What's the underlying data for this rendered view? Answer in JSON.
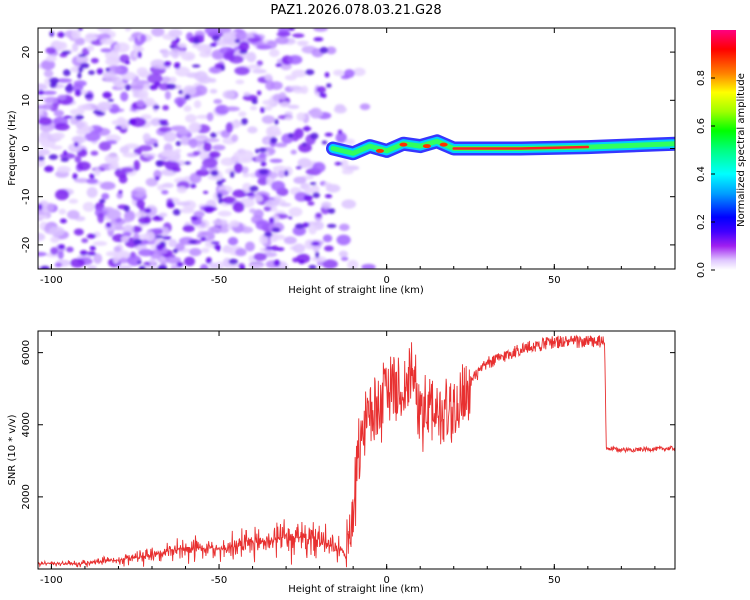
{
  "title": "PAZ1.2026.078.03.21.G28",
  "chart_data": [
    {
      "type": "heatmap",
      "title": "PAZ1.2026.078.03.21.G28",
      "xlabel": "Height of straight line (km)",
      "ylabel": "Frequency (Hz)",
      "xlim": [
        -104,
        86
      ],
      "ylim": [
        -25,
        25
      ],
      "xticks": [
        -100,
        -50,
        0,
        50
      ],
      "yticks": [
        -20,
        -10,
        0,
        10,
        20
      ],
      "colorbar": {
        "label": "Normalized spectral amplitude",
        "range": [
          0,
          1
        ],
        "ticks": [
          "0.0",
          "0.2",
          "0.4",
          "0.6",
          "0.8"
        ],
        "colors": [
          "#ffffff",
          "#d8b4ff",
          "#a020f0",
          "#4000ff",
          "#0000ff",
          "#00a0ff",
          "#00ffff",
          "#00ff80",
          "#00ff00",
          "#a0ff00",
          "#ffff00",
          "#ff8000",
          "#ff0000",
          "#ff0080"
        ]
      },
      "description_points": {
        "noise_region_x": [
          -104,
          -12
        ],
        "signal_ridge": [
          {
            "x": -16,
            "freq": 0.0
          },
          {
            "x": -10,
            "freq": -1.0
          },
          {
            "x": -5,
            "freq": 0.5
          },
          {
            "x": 0,
            "freq": -0.5
          },
          {
            "x": 5,
            "freq": 1.0
          },
          {
            "x": 10,
            "freq": 0.5
          },
          {
            "x": 15,
            "freq": 1.5
          },
          {
            "x": 20,
            "freq": 0.0
          },
          {
            "x": 40,
            "freq": 0.0
          },
          {
            "x": 60,
            "freq": 0.3
          },
          {
            "x": 86,
            "freq": 1.0
          }
        ]
      }
    },
    {
      "type": "line",
      "xlabel": "Height of straight line (km)",
      "ylabel": "SNR (10 * v/v)",
      "xlim": [
        -104,
        86
      ],
      "ylim": [
        0,
        6600
      ],
      "xticks": [
        -100,
        -50,
        0,
        50
      ],
      "yticks": [
        2000,
        4000,
        6000
      ],
      "series": [
        {
          "name": "SNR",
          "color": "#e83030",
          "x": [
            -104,
            -90,
            -80,
            -70,
            -60,
            -50,
            -40,
            -30,
            -20,
            -12,
            -10,
            -8,
            -5,
            0,
            5,
            8,
            10,
            15,
            20,
            25,
            30,
            40,
            50,
            60,
            65,
            65.5,
            70,
            80,
            86
          ],
          "values": [
            150,
            150,
            250,
            400,
            600,
            550,
            700,
            900,
            800,
            400,
            1600,
            3800,
            4200,
            5000,
            5000,
            5500,
            4600,
            4300,
            4500,
            5200,
            5700,
            6100,
            6300,
            6300,
            6300,
            3350,
            3300,
            3330,
            3350
          ]
        }
      ]
    }
  ]
}
